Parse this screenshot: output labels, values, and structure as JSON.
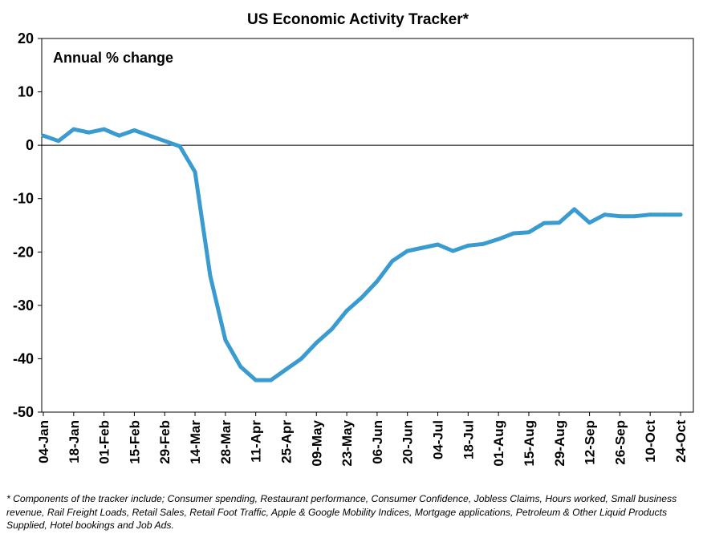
{
  "chart_data": {
    "type": "line",
    "title": "US Economic Activity Tracker*",
    "ylabel": "Annual % change",
    "xlabel": "",
    "ylim": [
      -50,
      20
    ],
    "yticks": [
      20,
      10,
      0,
      -10,
      -20,
      -30,
      -40,
      -50
    ],
    "grid": false,
    "legend": "none",
    "line_color": "#3A9BD0",
    "categories": [
      "04-Jan",
      "18-Jan",
      "01-Feb",
      "15-Feb",
      "29-Feb",
      "14-Mar",
      "28-Mar",
      "11-Apr",
      "25-Apr",
      "09-May",
      "23-May",
      "06-Jun",
      "20-Jun",
      "04-Jul",
      "18-Jul",
      "01-Aug",
      "15-Aug",
      "29-Aug",
      "12-Sep",
      "26-Sep",
      "10-Oct",
      "24-Oct"
    ],
    "x": [
      "04-Jan",
      "11-Jan",
      "18-Jan",
      "25-Jan",
      "01-Feb",
      "08-Feb",
      "15-Feb",
      "22-Feb",
      "29-Feb",
      "07-Mar",
      "14-Mar",
      "21-Mar",
      "28-Mar",
      "04-Apr",
      "11-Apr",
      "18-Apr",
      "25-Apr",
      "02-May",
      "09-May",
      "16-May",
      "23-May",
      "30-May",
      "06-Jun",
      "13-Jun",
      "20-Jun",
      "27-Jun",
      "04-Jul",
      "11-Jul",
      "18-Jul",
      "25-Jul",
      "01-Aug",
      "08-Aug",
      "15-Aug",
      "22-Aug",
      "29-Aug",
      "05-Sep",
      "12-Sep",
      "19-Sep",
      "26-Sep",
      "03-Oct",
      "10-Oct",
      "17-Oct",
      "24-Oct"
    ],
    "series": [
      {
        "values": [
          1.8,
          0.8,
          3.0,
          2.4,
          3.0,
          1.8,
          2.8,
          1.8,
          0.8,
          -0.2,
          -5.0,
          -24.5,
          -36.5,
          -41.5,
          -44.0,
          -44.0,
          -42.0,
          -40.0,
          -37.0,
          -34.5,
          -31.0,
          -28.5,
          -25.5,
          -21.7,
          -19.8,
          -19.2,
          -18.6,
          -19.8,
          -18.8,
          -18.5,
          -17.6,
          -16.5,
          -16.3,
          -14.6,
          -14.5,
          -12.0,
          -14.5,
          -13.0,
          -13.3,
          -13.3,
          -13.0,
          -13.0,
          -13.0
        ]
      }
    ]
  },
  "footnote": "* Components of the tracker include; Consumer spending, Restaurant performance, Consumer Confidence, Jobless Claims, Hours worked, Small business revenue, Rail Freight Loads, Retail Sales, Retail Foot Traffic, Apple & Google Mobility Indices, Mortgage applications, Petroleum & Other Liquid Products Supplied, Hotel bookings and Job Ads."
}
